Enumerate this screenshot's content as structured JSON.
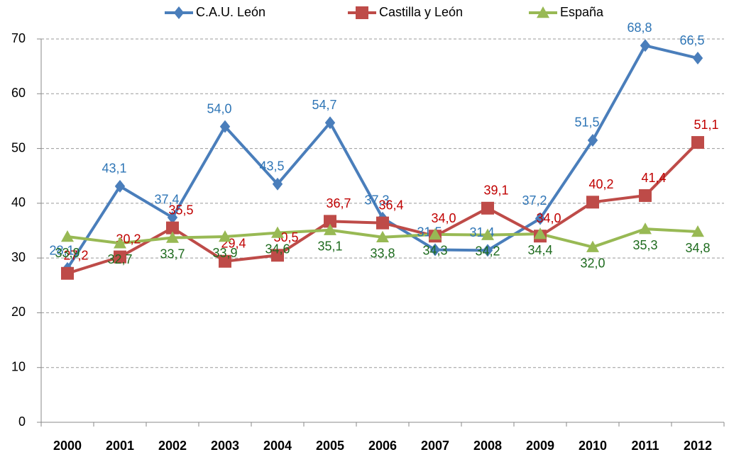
{
  "chart_data": {
    "type": "line",
    "categories": [
      "2000",
      "2001",
      "2002",
      "2003",
      "2004",
      "2005",
      "2006",
      "2007",
      "2008",
      "2009",
      "2010",
      "2011",
      "2012"
    ],
    "series": [
      {
        "name": "C.A.U. León",
        "color": "#4a7ebb",
        "label_color": "#2e75b6",
        "marker": "diamond",
        "values": [
          28.1,
          43.1,
          37.4,
          54.0,
          43.5,
          54.7,
          37.3,
          31.5,
          31.4,
          37.2,
          51.5,
          68.8,
          66.5
        ],
        "value_labels": [
          "28,1",
          "43,1",
          "37,4",
          "54,0",
          "43,5",
          "54,7",
          "37,3",
          "31,5",
          "31,4",
          "37,2",
          "51,5",
          "68,8",
          "66,5"
        ]
      },
      {
        "name": "Castilla y León",
        "color": "#be4b48",
        "label_color": "#c00000",
        "marker": "square",
        "values": [
          27.2,
          30.2,
          35.5,
          29.4,
          30.5,
          36.7,
          36.4,
          34.0,
          39.1,
          34.0,
          40.2,
          41.4,
          51.1
        ],
        "value_labels": [
          "27,2",
          "30,2",
          "35,5",
          "29,4",
          "30,5",
          "36,7",
          "36,4",
          "34,0",
          "39,1",
          "34,0",
          "40,2",
          "41,4",
          "51,1"
        ]
      },
      {
        "name": "España",
        "color": "#98b954",
        "label_color": "#1e6b1e",
        "marker": "triangle",
        "values": [
          33.9,
          32.7,
          33.7,
          33.9,
          34.6,
          35.1,
          33.8,
          34.3,
          34.2,
          34.4,
          32.0,
          35.3,
          34.8
        ],
        "value_labels": [
          "33,9",
          "32,7",
          "33,7",
          "33,9",
          "34,6",
          "35,1",
          "33,8",
          "34,3",
          "34,2",
          "34,4",
          "32,0",
          "35,3",
          "34,8"
        ]
      }
    ],
    "ylim": [
      0,
      70
    ],
    "yticks": [
      0,
      10,
      20,
      30,
      40,
      50,
      60,
      70
    ],
    "grid": true,
    "legend": "top"
  }
}
